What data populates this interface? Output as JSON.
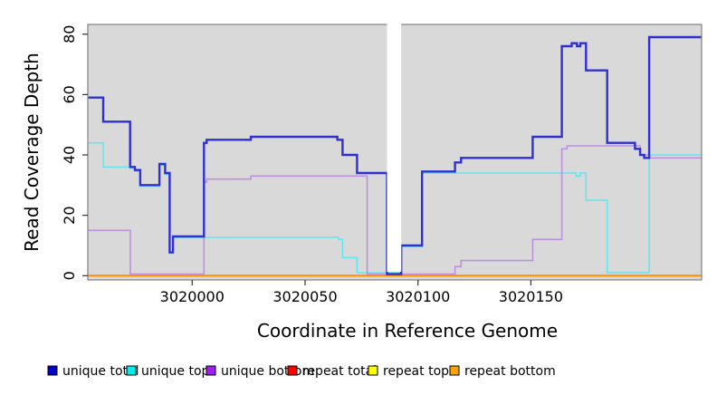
{
  "chart_data": {
    "type": "line",
    "subtype": "step-coverage",
    "title": "",
    "xlabel": "Coordinate in Reference Genome",
    "ylabel": "Read Coverage Depth",
    "xlim": [
      3019954,
      3020226
    ],
    "ylim": [
      0,
      80
    ],
    "x_ticks": [
      3020000,
      3020050,
      3020100,
      3020150
    ],
    "y_ticks": [
      0,
      20,
      40,
      60,
      80
    ],
    "plot_bg": "#d9d9d9",
    "border_color": "#808080",
    "grid": false,
    "gap_region": {
      "from": 3020086.3,
      "to": 3020092.6,
      "color": "#ffffff"
    },
    "draw_order": [
      "repeat total",
      "repeat top",
      "unique top",
      "unique bottom",
      "repeat bottom",
      "unique total"
    ],
    "series": [
      {
        "name": "unique total",
        "color": "#3030cf",
        "line_width": 2.4,
        "steps": [
          [
            3019954,
            59
          ],
          [
            3019960.6,
            51
          ],
          [
            3019972.5,
            36
          ],
          [
            3019974.6,
            35
          ],
          [
            3019977,
            30
          ],
          [
            3019985.5,
            37
          ],
          [
            3019988,
            34
          ],
          [
            3019990,
            7.7
          ],
          [
            3019991.5,
            13
          ],
          [
            3020005.2,
            44
          ],
          [
            3020006.4,
            45
          ],
          [
            3020026,
            46
          ],
          [
            3020064.3,
            45
          ],
          [
            3020066.6,
            40
          ],
          [
            3020073,
            34
          ],
          [
            3020086.3,
            0.5
          ],
          [
            3020092.6,
            10
          ],
          [
            3020101.8,
            34.5
          ],
          [
            3020116.4,
            37.5
          ],
          [
            3020119.1,
            39
          ],
          [
            3020150.8,
            46
          ],
          [
            3020163.7,
            76
          ],
          [
            3020168.1,
            77
          ],
          [
            3020170.4,
            76
          ],
          [
            3020171.9,
            77
          ],
          [
            3020174.4,
            68
          ],
          [
            3020183.8,
            44
          ],
          [
            3020196.1,
            42
          ],
          [
            3020198.4,
            40
          ],
          [
            3020200.2,
            39
          ],
          [
            3020202.4,
            79
          ]
        ]
      },
      {
        "name": "unique top",
        "color": "#66e6ee",
        "line_width": 1.6,
        "steps": [
          [
            3019954,
            44
          ],
          [
            3019960.6,
            36
          ],
          [
            3019972.5,
            35.6
          ],
          [
            3019974.6,
            34.6
          ],
          [
            3019977,
            29.6
          ],
          [
            3019985.5,
            36.6
          ],
          [
            3019988,
            33.6
          ],
          [
            3019990,
            7.4
          ],
          [
            3019991.5,
            12.7
          ],
          [
            3020064.8,
            12
          ],
          [
            3020066.6,
            6
          ],
          [
            3020073,
            1
          ],
          [
            3020092.6,
            9.7
          ],
          [
            3020101.8,
            34
          ],
          [
            3020170,
            33
          ],
          [
            3020171.8,
            34
          ],
          [
            3020174.4,
            25
          ],
          [
            3020183.8,
            1
          ],
          [
            3020202.4,
            40
          ]
        ]
      },
      {
        "name": "unique bottom",
        "color": "#be90df",
        "line_width": 1.6,
        "steps": [
          [
            3019954,
            15
          ],
          [
            3019972.6,
            0.5
          ],
          [
            3020005.2,
            31
          ],
          [
            3020006.4,
            32
          ],
          [
            3020026,
            33
          ],
          [
            3020077.5,
            0.5
          ],
          [
            3020116.4,
            3
          ],
          [
            3020119.1,
            5
          ],
          [
            3020150.8,
            12
          ],
          [
            3020163.7,
            42
          ],
          [
            3020166,
            43
          ],
          [
            3020198.4,
            40
          ],
          [
            3020202.4,
            39
          ]
        ]
      },
      {
        "name": "repeat total",
        "color": "#e8112d",
        "line_width": 1.4,
        "steps": [
          [
            3019954,
            0.15
          ]
        ]
      },
      {
        "name": "repeat top",
        "color": "#ffff00",
        "line_width": 1.4,
        "steps": [
          [
            3019954,
            0.15
          ]
        ]
      },
      {
        "name": "repeat bottom",
        "color": "#ff9100",
        "line_width": 1.8,
        "steps": [
          [
            3019954,
            0
          ]
        ]
      }
    ],
    "legend": {
      "position": "bottom",
      "entries": [
        {
          "label": "unique total",
          "swatch_color": "#0000cc"
        },
        {
          "label": "unique top",
          "swatch_color": "#00eeee"
        },
        {
          "label": "unique bottom",
          "swatch_color": "#a020f0"
        },
        {
          "label": "repeat total",
          "swatch_color": "#ff0000"
        },
        {
          "label": "repeat top",
          "swatch_color": "#ffff00"
        },
        {
          "label": "repeat bottom",
          "swatch_color": "#ffa500"
        }
      ]
    }
  }
}
